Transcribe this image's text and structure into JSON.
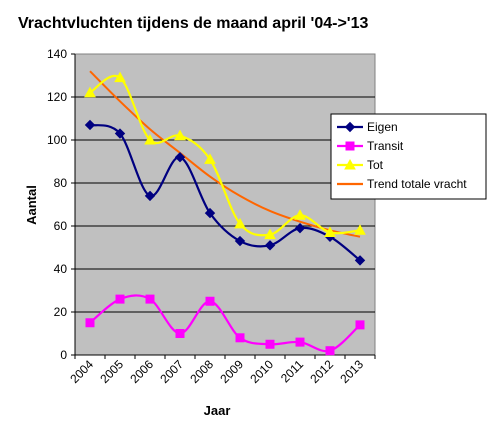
{
  "chart_data": {
    "type": "line",
    "title": "Vrachtvluchten tijdens de maand april '04->'13",
    "xlabel": "Jaar",
    "ylabel": "Aantal",
    "categories": [
      "2004",
      "2005",
      "2006",
      "2007",
      "2008",
      "2009",
      "2010",
      "2011",
      "2012",
      "2013"
    ],
    "ylim": [
      0,
      140
    ],
    "yticks": [
      0,
      20,
      40,
      60,
      80,
      100,
      120,
      140
    ],
    "grid": true,
    "legend_position": "right",
    "series": [
      {
        "name": "Eigen",
        "values": [
          107,
          103,
          74,
          92,
          66,
          53,
          51,
          59,
          55,
          44
        ],
        "color": "#000080",
        "marker": "diamond",
        "smooth": true
      },
      {
        "name": "Transit",
        "values": [
          15,
          26,
          26,
          10,
          25,
          8,
          5,
          6,
          2,
          14
        ],
        "color": "#ff00ff",
        "marker": "square",
        "smooth": true
      },
      {
        "name": "Tot",
        "values": [
          122,
          129,
          100,
          102,
          91,
          61,
          56,
          65,
          57,
          58
        ],
        "color": "#ffff00",
        "marker": "triangle",
        "smooth": true
      },
      {
        "name": "Trend totale vracht",
        "values": [
          132,
          118,
          105,
          94,
          83,
          74,
          67,
          62,
          58,
          55
        ],
        "color": "#ff6600",
        "marker": "none",
        "smooth": true
      }
    ]
  }
}
